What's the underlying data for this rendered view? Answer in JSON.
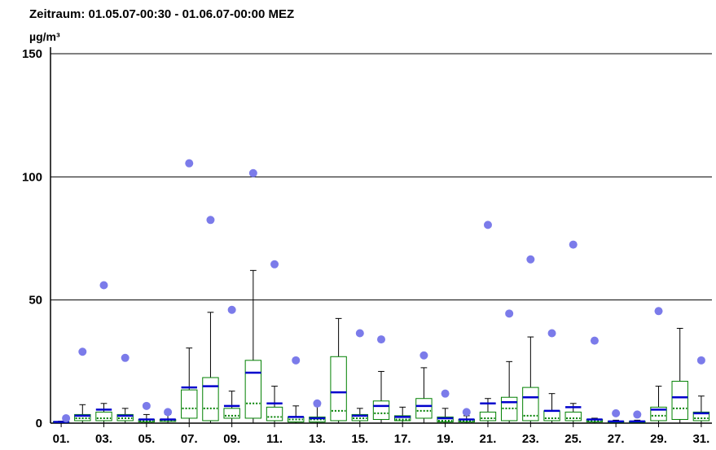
{
  "chart_data": {
    "type": "boxplot",
    "title": "Zeitraum: 01.05.07-00:30 - 01.06.07-00:00 MEZ",
    "ylabel": "µg/m³",
    "ylim": [
      0,
      150
    ],
    "yticks": [
      0,
      50,
      100,
      150
    ],
    "grid": true,
    "xtick_labels": [
      "01.",
      "03.",
      "05.",
      "07.",
      "09.",
      "11.",
      "13.",
      "15.",
      "17.",
      "19.",
      "21.",
      "23.",
      "25.",
      "27.",
      "29.",
      "31."
    ],
    "days": [
      {
        "day": 1,
        "min": 0.2,
        "q1": 0.3,
        "median": 0.4,
        "q3": 0.6,
        "max": 0.8,
        "mean": 0.5,
        "outlier": 2
      },
      {
        "day": 2,
        "min": 0.2,
        "q1": 1,
        "median": 2,
        "q3": 3.5,
        "max": 7.5,
        "mean": 3,
        "outlier": 29
      },
      {
        "day": 3,
        "min": 0.2,
        "q1": 1,
        "median": 2,
        "q3": 4.5,
        "max": 8,
        "mean": 5.5,
        "outlier": 56
      },
      {
        "day": 4,
        "min": 0.2,
        "q1": 1,
        "median": 2,
        "q3": 3.5,
        "max": 6,
        "mean": 3,
        "outlier": 26.5
      },
      {
        "day": 5,
        "min": 0.2,
        "q1": 0.5,
        "median": 1,
        "q3": 1.5,
        "max": 3.5,
        "mean": 1.5,
        "outlier": 7
      },
      {
        "day": 6,
        "min": 0.2,
        "q1": 0.7,
        "median": 1,
        "q3": 1.5,
        "max": 3.5,
        "mean": 1.5,
        "outlier": 4.5
      },
      {
        "day": 7,
        "min": 0.2,
        "q1": 2,
        "median": 6,
        "q3": 13.5,
        "max": 30.5,
        "mean": 14.5,
        "outlier": 105.5
      },
      {
        "day": 8,
        "min": 0.2,
        "q1": 1,
        "median": 6,
        "q3": 18.5,
        "max": 45,
        "mean": 15,
        "outlier": 82.5
      },
      {
        "day": 9,
        "min": 0.2,
        "q1": 2,
        "median": 3,
        "q3": 6,
        "max": 13,
        "mean": 7,
        "outlier": 46
      },
      {
        "day": 10,
        "min": 0.2,
        "q1": 2,
        "median": 8,
        "q3": 25.5,
        "max": 62,
        "mean": 20.5,
        "outlier": 101.5
      },
      {
        "day": 11,
        "min": 0.2,
        "q1": 1,
        "median": 2.5,
        "q3": 6.5,
        "max": 15,
        "mean": 8,
        "outlier": 64.5
      },
      {
        "day": 12,
        "min": 0.2,
        "q1": 0.5,
        "median": 1.5,
        "q3": 2.5,
        "max": 7,
        "mean": 2.5,
        "outlier": 25.5
      },
      {
        "day": 13,
        "min": 0.2,
        "q1": 0.5,
        "median": 1.5,
        "q3": 2.5,
        "max": 7,
        "mean": 2,
        "outlier": 8
      },
      {
        "day": 14,
        "min": 0.2,
        "q1": 1,
        "median": 5,
        "q3": 27,
        "max": 42.5,
        "mean": 12.5,
        "outlier": null
      },
      {
        "day": 15,
        "min": 0.2,
        "q1": 1,
        "median": 2,
        "q3": 3.5,
        "max": 6,
        "mean": 3,
        "outlier": 36.5
      },
      {
        "day": 16,
        "min": 0.2,
        "q1": 1.5,
        "median": 4,
        "q3": 9,
        "max": 21,
        "mean": 7,
        "outlier": 34
      },
      {
        "day": 17,
        "min": 0.2,
        "q1": 1,
        "median": 1.5,
        "q3": 3,
        "max": 6.5,
        "mean": 2.5,
        "outlier": null
      },
      {
        "day": 18,
        "min": 0.2,
        "q1": 2,
        "median": 5,
        "q3": 10,
        "max": 22.5,
        "mean": 7,
        "outlier": 27.5
      },
      {
        "day": 19,
        "min": 0.2,
        "q1": 0.5,
        "median": 1,
        "q3": 2.5,
        "max": 6,
        "mean": 2,
        "outlier": 12
      },
      {
        "day": 20,
        "min": 0.2,
        "q1": 0.5,
        "median": 1,
        "q3": 1.5,
        "max": 3,
        "mean": 1.5,
        "outlier": 4.5
      },
      {
        "day": 21,
        "min": 0.2,
        "q1": 1,
        "median": 2,
        "q3": 4.5,
        "max": 10,
        "mean": 8,
        "outlier": 80.5
      },
      {
        "day": 22,
        "min": 0.2,
        "q1": 1,
        "median": 6,
        "q3": 10.5,
        "max": 25,
        "mean": 8.5,
        "outlier": 44.5
      },
      {
        "day": 23,
        "min": 0.2,
        "q1": 1,
        "median": 3,
        "q3": 14.5,
        "max": 35,
        "mean": 10.5,
        "outlier": 66.5
      },
      {
        "day": 24,
        "min": 0.2,
        "q1": 1,
        "median": 2,
        "q3": 5,
        "max": 12,
        "mean": 5,
        "outlier": 36.5
      },
      {
        "day": 25,
        "min": 0.2,
        "q1": 1,
        "median": 2,
        "q3": 4.5,
        "max": 8,
        "mean": 6.5,
        "outlier": 72.5
      },
      {
        "day": 26,
        "min": 0.2,
        "q1": 0.5,
        "median": 1,
        "q3": 1.5,
        "max": 2,
        "mean": 1.5,
        "outlier": 33.5
      },
      {
        "day": 27,
        "min": 0.2,
        "q1": 0.3,
        "median": 0.5,
        "q3": 0.8,
        "max": 1.2,
        "mean": 0.7,
        "outlier": 4
      },
      {
        "day": 28,
        "min": 0.2,
        "q1": 0.3,
        "median": 0.5,
        "q3": 0.8,
        "max": 1.2,
        "mean": 0.7,
        "outlier": 3.5
      },
      {
        "day": 29,
        "min": 0.2,
        "q1": 1,
        "median": 3,
        "q3": 6.5,
        "max": 15,
        "mean": 5.5,
        "outlier": 45.5
      },
      {
        "day": 30,
        "min": 0.2,
        "q1": 1.5,
        "median": 6,
        "q3": 17,
        "max": 38.5,
        "mean": 10.5,
        "outlier": null
      },
      {
        "day": 31,
        "min": 0.2,
        "q1": 1,
        "median": 2,
        "q3": 4.5,
        "max": 11,
        "mean": 4,
        "outlier": 25.5
      }
    ],
    "colors": {
      "box": "#008000",
      "median": "#008000",
      "mean": "#0000cc",
      "whisker": "#000000",
      "outlier": "#7b7bea",
      "grid": "#000000"
    }
  }
}
